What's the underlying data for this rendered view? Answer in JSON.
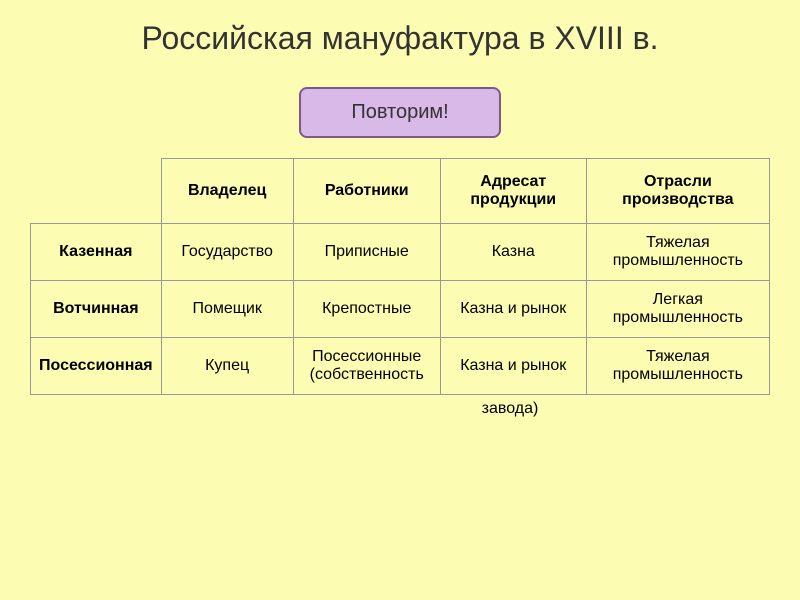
{
  "title": "Российская мануфактура в XVIII в.",
  "badge": "Повторим!",
  "table": {
    "headers": {
      "col1": "",
      "col2": "Владелец",
      "col3": "Работники",
      "col4": "Адресат продукции",
      "col5": "Отрасли производства"
    },
    "rows": [
      {
        "label": "Казенная",
        "owner": "Государство",
        "workers": "Приписные",
        "recipient": "Казна",
        "industry": "Тяжелая промышленность"
      },
      {
        "label": "Вотчинная",
        "owner": "Помещик",
        "workers": "Крепостные",
        "recipient": "Казна и рынок",
        "industry": "Легкая промышленность"
      },
      {
        "label": "Посессионная",
        "owner": "Купец",
        "workers": "Посессионные (собственность",
        "recipient": "Казна и рынок",
        "industry": "Тяжелая промышленность"
      }
    ],
    "overflow": "завода)"
  },
  "colors": {
    "background": "#fcfcb2",
    "badge_bg": "#d8b9e8",
    "badge_border": "#7a5a8a",
    "table_border": "#999999",
    "text": "#333333"
  }
}
